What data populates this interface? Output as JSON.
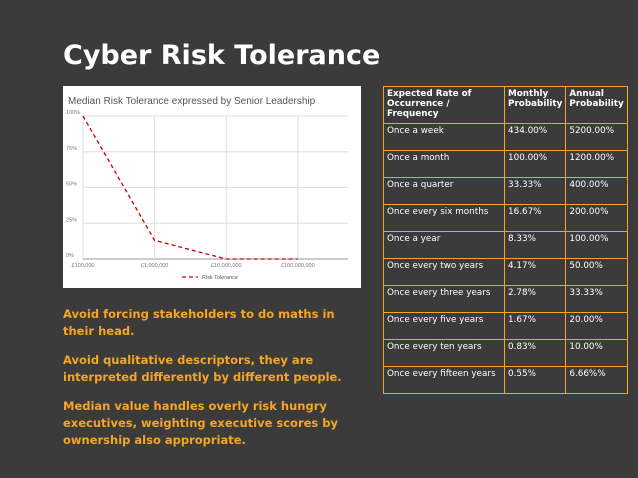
{
  "slide": {
    "title": "Cyber Risk Tolerance"
  },
  "chart_data": {
    "type": "line",
    "title": "Median Risk Tolerance expressed by Senior Leadership",
    "x_scale": "log",
    "x_ticks": [
      "£100,000",
      "£1,000,000",
      "£10,000,000",
      "£100,000,000"
    ],
    "y_ticks": [
      "0%",
      "25%",
      "50%",
      "75%",
      "100%"
    ],
    "ylim": [
      0,
      100
    ],
    "legend": "bottom",
    "series": [
      {
        "name": "Risk Tolerance",
        "color": "#cc0000",
        "dashed": true,
        "x": [
          100000,
          1000000,
          10000000,
          100000000
        ],
        "y": [
          100,
          13,
          0,
          0
        ]
      }
    ]
  },
  "notes": [
    "Avoid forcing stakeholders to do maths in their head.",
    "Avoid qualitative descriptors, they are interpreted differently by different people.",
    "Median value handles overly risk hungry executives, weighting executive scores by ownership also appropriate."
  ],
  "table": {
    "headers": [
      "Expected Rate of Occurrence / Frequency",
      "Monthly Probability",
      "Annual Probability"
    ],
    "rows": [
      [
        "Once a week",
        "434.00%",
        "5200.00%"
      ],
      [
        "Once a month",
        "100.00%",
        "1200.00%"
      ],
      [
        "Once a quarter",
        "33.33%",
        "400.00%"
      ],
      [
        "Once every six months",
        "16.67%",
        "200.00%"
      ],
      [
        "Once a year",
        "8.33%",
        "100.00%"
      ],
      [
        "Once every two years",
        "4.17%",
        "50.00%"
      ],
      [
        "Once every three years",
        "2.78%",
        "33.33%"
      ],
      [
        "Once every five years",
        "1.67%",
        "20.00%"
      ],
      [
        "Once every ten years",
        "0.83%",
        "10.00%"
      ],
      [
        "Once every fifteen years",
        "0.55%",
        "6.66%%"
      ]
    ]
  },
  "colors": {
    "background": "#3b3b3b",
    "accent": "#f5a623",
    "line": "#cc0000"
  }
}
